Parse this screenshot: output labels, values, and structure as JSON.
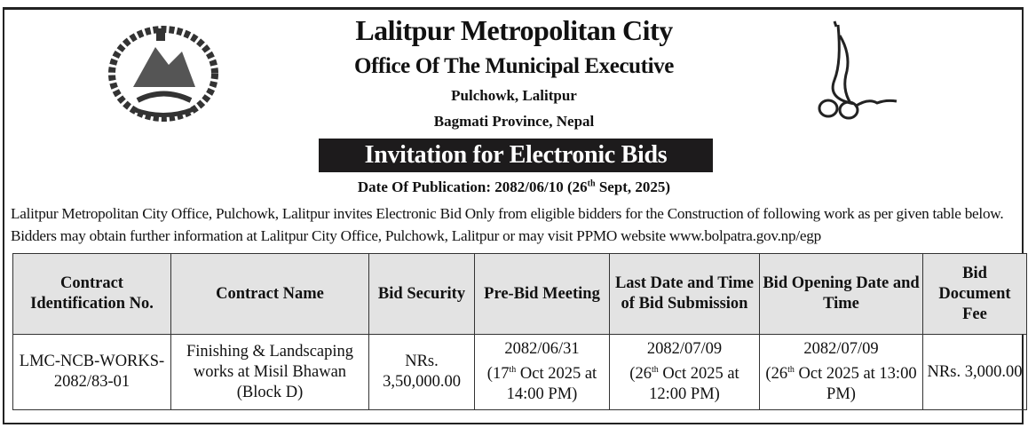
{
  "header": {
    "title": "Lalitpur Metropolitan City",
    "office": "Office Of The Municipal Executive",
    "address_line1": "Pulchowk, Lalitpur",
    "address_line2": "Bagmati Province, Nepal",
    "emblem_text": "जननी जन्मभूमिश्च स्वर्गादपि गरीयसी"
  },
  "banner": {
    "title": "Invitation for Electronic Bids"
  },
  "publication": {
    "prefix": "Date Of Publication: 2082/06/10 (26",
    "sup": "th",
    "suffix": " Sept, 2025)"
  },
  "intro": "Lalitpur Metropolitan City Office, Pulchowk, Lalitpur invites Electronic Bid Only from eligible bidders for the Construction of following work as per given table below. Bidders may obtain further information at Lalitpur City Office, Pulchowk, Lalitpur or may visit PPMO website www.bolpatra.gov.np/egp",
  "table": {
    "headers": [
      "Contract Identification No.",
      "Contract Name",
      "Bid Security",
      "Pre-Bid Meeting",
      "Last Date and Time of Bid Submission",
      "Bid Opening Date and Time",
      "Bid Document Fee"
    ],
    "row": {
      "id": "LMC-NCB-WORKS-2082/83-01",
      "name": "Finishing & Landscaping works at Misil Bhawan (Block D)",
      "security": "NRs. 3,50,000.00",
      "prebid": {
        "date": "2082/06/31",
        "pre": "(17",
        "sup": "th",
        "post": " Oct 2025 at 14:00 PM)"
      },
      "submission": {
        "date": "2082/07/09",
        "pre": "(26",
        "sup": "th",
        "post": " Oct 2025 at 12:00 PM)"
      },
      "opening": {
        "date": "2082/07/09",
        "pre": "(26",
        "sup": "th",
        "post": " Oct 2025 at 13:00 PM)"
      },
      "fee": "NRs. 3,000.00"
    }
  }
}
